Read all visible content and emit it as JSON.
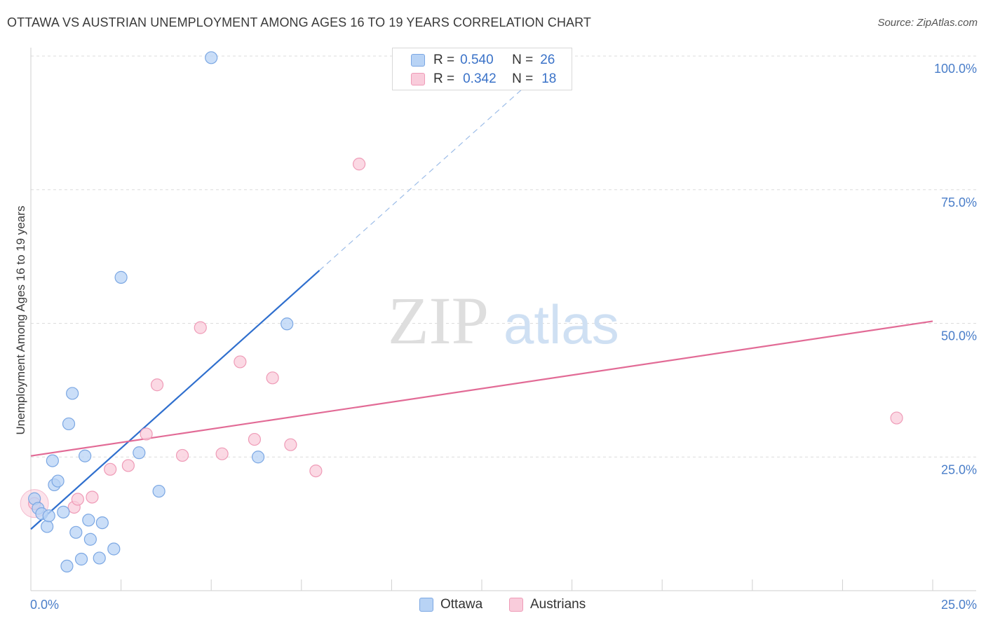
{
  "title": "OTTAWA VS AUSTRIAN UNEMPLOYMENT AMONG AGES 16 TO 19 YEARS CORRELATION CHART",
  "source": "Source: ZipAtlas.com",
  "watermark": {
    "zip": "ZIP",
    "atlas": "atlas"
  },
  "legend": {
    "r_label": "R =",
    "n_label": "N =",
    "ottawa": {
      "r": "0.540",
      "n": "26"
    },
    "austrians": {
      "r": "0.342",
      "n": "18"
    }
  },
  "colors": {
    "ottawa_fill": "#b8d3f5",
    "ottawa_stroke": "#7ba7e3",
    "ottawa_line": "#2f6fce",
    "austrians_fill": "#f9ccdb",
    "austrians_stroke": "#ef9bb7",
    "austrians_line": "#e26b96",
    "tick_text": "#4a7ec9"
  },
  "chart_data": {
    "type": "scatter",
    "title": "OTTAWA VS AUSTRIAN UNEMPLOYMENT AMONG AGES 16 TO 19 YEARS CORRELATION CHART",
    "xlabel": "",
    "ylabel": "Unemployment Among Ages 16 to 19 years",
    "xlim": [
      0,
      25
    ],
    "ylim": [
      0,
      100
    ],
    "x_tick_labels": [
      "0.0%",
      "25.0%"
    ],
    "y_ticks": [
      25,
      50,
      75,
      100
    ],
    "y_tick_labels": [
      "25.0%",
      "50.0%",
      "75.0%",
      "100.0%"
    ],
    "grid": true,
    "series": [
      {
        "name": "Ottawa",
        "points": [
          [
            0.1,
            17.2
          ],
          [
            0.2,
            15.4
          ],
          [
            0.3,
            14.4
          ],
          [
            0.45,
            12.0
          ],
          [
            0.5,
            14.0
          ],
          [
            0.6,
            24.3
          ],
          [
            0.65,
            19.8
          ],
          [
            0.75,
            20.5
          ],
          [
            0.9,
            14.7
          ],
          [
            1.0,
            4.6
          ],
          [
            1.05,
            31.2
          ],
          [
            1.15,
            36.9
          ],
          [
            1.25,
            10.9
          ],
          [
            1.4,
            5.9
          ],
          [
            1.5,
            25.2
          ],
          [
            1.6,
            13.2
          ],
          [
            1.65,
            9.6
          ],
          [
            1.9,
            6.1
          ],
          [
            1.98,
            12.7
          ],
          [
            2.3,
            7.8
          ],
          [
            2.5,
            58.6
          ],
          [
            3.0,
            25.8
          ],
          [
            3.55,
            18.6
          ],
          [
            5.0,
            99.7
          ],
          [
            6.3,
            25.0
          ],
          [
            7.1,
            49.9
          ]
        ],
        "trend": {
          "x": [
            0,
            8
          ],
          "y": [
            11.5,
            59.9
          ],
          "dashed_to": [
            13.6,
            93.7
          ]
        }
      },
      {
        "name": "Austrians",
        "points": [
          [
            0.1,
            16.3
          ],
          [
            1.2,
            15.6
          ],
          [
            1.3,
            17.1
          ],
          [
            1.7,
            17.5
          ],
          [
            2.2,
            22.7
          ],
          [
            2.7,
            23.4
          ],
          [
            3.2,
            29.3
          ],
          [
            3.5,
            38.5
          ],
          [
            4.2,
            25.3
          ],
          [
            4.7,
            49.2
          ],
          [
            5.3,
            25.6
          ],
          [
            5.8,
            42.8
          ],
          [
            6.2,
            28.3
          ],
          [
            6.7,
            39.8
          ],
          [
            7.2,
            27.3
          ],
          [
            7.9,
            22.4
          ],
          [
            9.1,
            79.8
          ],
          [
            24.0,
            32.3
          ]
        ],
        "trend": {
          "x": [
            0,
            25
          ],
          "y": [
            25.2,
            50.4
          ]
        }
      }
    ]
  }
}
